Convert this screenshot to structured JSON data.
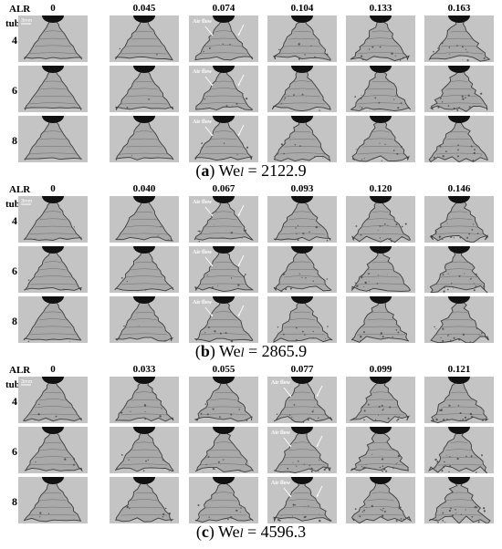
{
  "panels": [
    {
      "header": "ALR",
      "row_header": "tubes",
      "alr_values": [
        "0",
        "0.045",
        "0.074",
        "0.104",
        "0.133",
        "0.163"
      ],
      "tubes": [
        "4",
        "6",
        "8"
      ],
      "caption": {
        "letter": "a",
        "we_label": "We",
        "subscript": "l",
        "value": "= 2122.9"
      }
    },
    {
      "header": "ALR",
      "row_header": "tubes",
      "alr_values": [
        "0",
        "0.040",
        "0.067",
        "0.093",
        "0.120",
        "0.146"
      ],
      "tubes": [
        "4",
        "6",
        "8"
      ],
      "caption": {
        "letter": "b",
        "we_label": "We",
        "subscript": "l",
        "value": "= 2865.9"
      }
    },
    {
      "header": "ALR",
      "row_header": "tubes",
      "alr_values": [
        "0",
        "0.033",
        "0.055",
        "0.077",
        "0.099",
        "0.121"
      ],
      "tubes": [
        "4",
        "6",
        "8"
      ],
      "caption": {
        "letter": "c",
        "we_label": "We",
        "subscript": "l",
        "value": "= 4596.3"
      }
    }
  ],
  "annotations": {
    "scale": "3mm",
    "air_flow": "Air flow"
  }
}
